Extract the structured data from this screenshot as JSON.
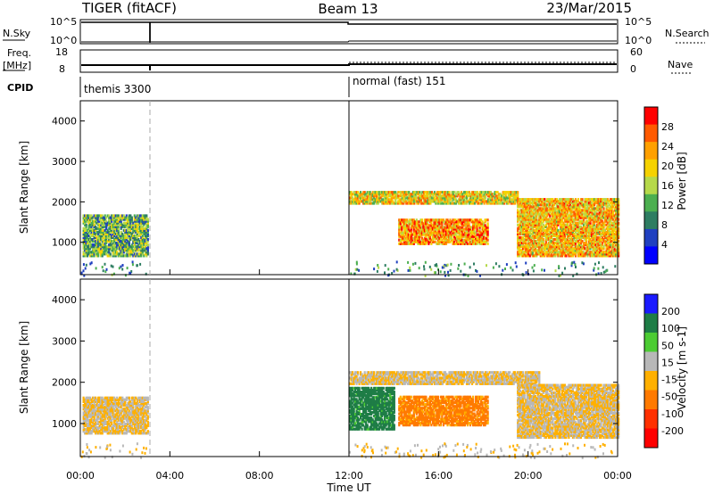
{
  "header": {
    "title_left": "TIGER (fitACF)",
    "title_center": "Beam 13",
    "title_right": "23/Mar/2015"
  },
  "top_strip": {
    "nsky_label": "N.Sky",
    "nsky_ticks": [
      "10^5",
      "10^0"
    ],
    "nsearch_label": "N.Search",
    "nsearch_ticks": [
      "10^5",
      "10^0"
    ],
    "freq_label": "Freq.",
    "freq_unit": "[MHz]",
    "freq_ticks": [
      "18",
      "8"
    ],
    "nave_label": "Nave",
    "nave_ticks": [
      "60",
      "0"
    ],
    "cpid_label": "CPID",
    "cpid_segments": [
      {
        "label": "themis 3300",
        "start_hour": 0,
        "end_hour": 12
      },
      {
        "label": "normal (fast) 151",
        "start_hour": 12,
        "end_hour": 24
      }
    ]
  },
  "chart_data": [
    {
      "type": "heatmap",
      "name": "Power",
      "ylabel": "Slant Range [km]",
      "xlabel": "Time UT",
      "xlim": [
        0,
        24
      ],
      "ylim": [
        200,
        4500
      ],
      "x_ticks": [
        "00:00",
        "04:00",
        "08:00",
        "12:00",
        "16:00",
        "20:00",
        "00:00"
      ],
      "y_ticks": [
        "1000",
        "2000",
        "3000",
        "4000"
      ],
      "colorbar": {
        "label": "Power [dB]",
        "ticks": [
          "4",
          "8",
          "12",
          "16",
          "20",
          "24",
          "28"
        ],
        "range": [
          0,
          30
        ]
      },
      "data_gaps": [
        [
          3,
          12
        ]
      ],
      "echo_regions": [
        {
          "start_hour": 0.1,
          "end_hour": 3.0,
          "range_km": [
            700,
            1700
          ],
          "power_db": 12
        },
        {
          "start_hour": 12.0,
          "end_hour": 19.5,
          "range_km": [
            2000,
            2300
          ],
          "power_db": 18
        },
        {
          "start_hour": 14.2,
          "end_hour": 18.2,
          "range_km": [
            1000,
            1600
          ],
          "power_db": 22
        },
        {
          "start_hour": 19.5,
          "end_hour": 24.0,
          "range_km": [
            700,
            2100
          ],
          "power_db": 20
        }
      ]
    },
    {
      "type": "heatmap",
      "name": "Velocity",
      "ylabel": "Slant Range [km]",
      "xlabel": "Time UT",
      "xlim": [
        0,
        24
      ],
      "ylim": [
        200,
        4500
      ],
      "x_ticks": [
        "00:00",
        "04:00",
        "08:00",
        "12:00",
        "16:00",
        "20:00",
        "00:00"
      ],
      "y_ticks": [
        "1000",
        "2000",
        "3000",
        "4000"
      ],
      "colorbar": {
        "label": "Velocity [m s-1]",
        "ticks": [
          "200",
          "100",
          "50",
          "15",
          "-15",
          "-50",
          "-100",
          "-200"
        ],
        "range": [
          -250,
          250
        ]
      },
      "data_gaps": [
        [
          3,
          12
        ]
      ],
      "echo_regions": [
        {
          "start_hour": 0.1,
          "end_hour": 3.0,
          "range_km": [
            800,
            1700
          ],
          "velocity_ms": 0
        },
        {
          "start_hour": 12.0,
          "end_hour": 20.5,
          "range_km": [
            2000,
            2300
          ],
          "velocity_ms": 0
        },
        {
          "start_hour": 12.0,
          "end_hour": 14.0,
          "range_km": [
            900,
            1900
          ],
          "velocity_ms": 150
        },
        {
          "start_hour": 14.2,
          "end_hour": 18.2,
          "range_km": [
            1000,
            1700
          ],
          "velocity_ms": -80
        },
        {
          "start_hour": 19.5,
          "end_hour": 24.0,
          "range_km": [
            700,
            2000
          ],
          "velocity_ms": 0
        }
      ]
    }
  ],
  "x_axis_label": "Time UT",
  "colors": {
    "power_scale": [
      "#0000ff",
      "#2040c0",
      "#2e7d62",
      "#4caf50",
      "#b6d94a",
      "#f5d200",
      "#ffa000",
      "#ff5a00",
      "#ff0000"
    ],
    "velocity_scale": [
      "#1a1aff",
      "#1e7d46",
      "#4ccc33",
      "#b8b8b8",
      "#ffb000",
      "#ff7a00",
      "#ff3000",
      "#ff0000"
    ]
  }
}
